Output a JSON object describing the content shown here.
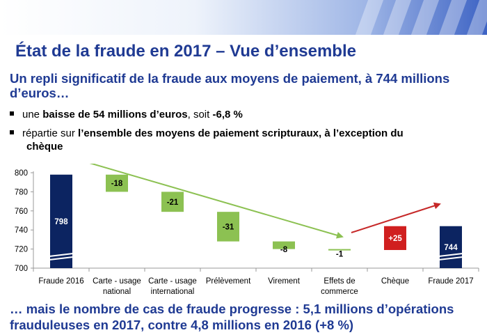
{
  "title": "État de la fraude en 2017 – Vue d’ensemble",
  "subtitle": "Un repli significatif de la fraude aux moyens de paiement, à 744 millions d’euros…",
  "bullets": {
    "b1": {
      "pre": "une ",
      "bold": "baisse de 54 millions d’euros",
      "mid": ", soit ",
      "bold2": "-6,8 %"
    },
    "b2": {
      "pre": "répartie sur ",
      "bold": "l’ensemble des moyens de paiement scripturaux, à l’exception du",
      "cont": "chèque"
    }
  },
  "footer": "… mais le nombre de cas de fraude progresse : 5,1 millions d’opérations frauduleuses en 2017, contre 4,8 millions en 2016 (+8 %)",
  "colors": {
    "accent": "#1f3a93",
    "total": "#0c2461",
    "decrease": "#8cc152",
    "increase": "#d01f1f",
    "trend_down": "#8cc152",
    "trend_up": "#c62828"
  },
  "chart_data": {
    "type": "bar",
    "subtype": "waterfall",
    "ylim": [
      700,
      800
    ],
    "yticks": [
      700,
      720,
      740,
      760,
      780,
      800
    ],
    "categories": [
      [
        "Fraude 2016"
      ],
      [
        "Carte - usage",
        "national"
      ],
      [
        "Carte - usage",
        "international"
      ],
      [
        "Prélèvement"
      ],
      [
        "Virement"
      ],
      [
        "Effets de",
        "commerce"
      ],
      [
        "Chèque"
      ],
      [
        "Fraude 2017"
      ]
    ],
    "values": [
      798,
      -18,
      -21,
      -31,
      -8,
      -1,
      25,
      744
    ],
    "labels": [
      "798",
      "-18",
      "-21",
      "-31",
      "-8",
      "-1",
      "+25",
      "744"
    ],
    "kinds": [
      "total",
      "decrease",
      "decrease",
      "decrease",
      "decrease",
      "decrease",
      "increase",
      "total"
    ],
    "axis_break": true,
    "grid": false,
    "legend": "none"
  }
}
